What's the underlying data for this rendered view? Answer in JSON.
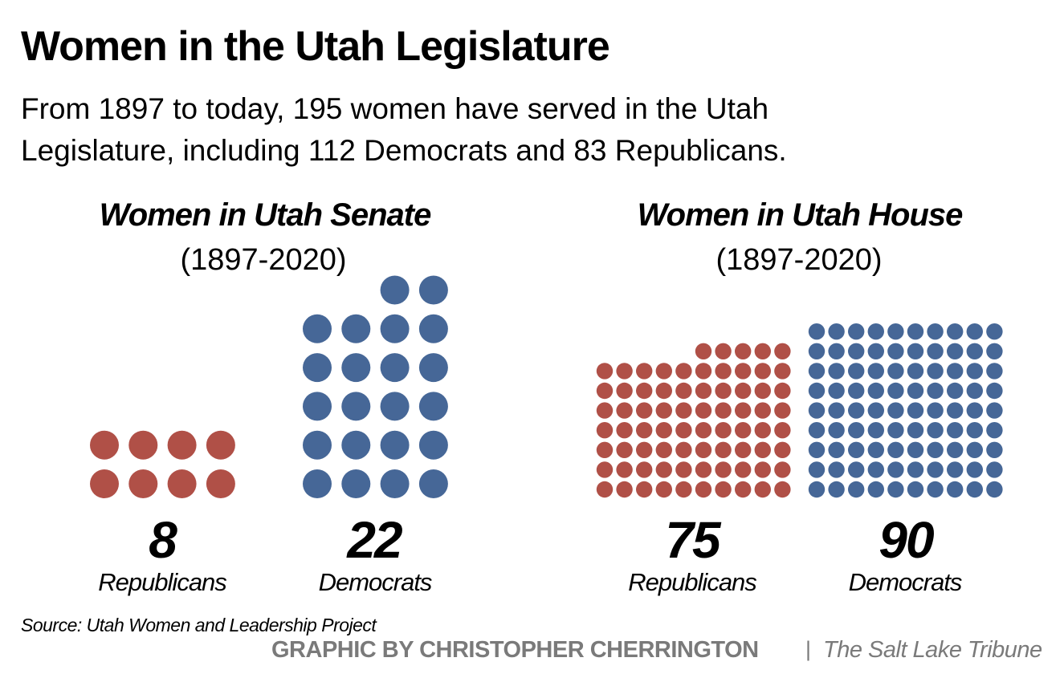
{
  "title": "Women in the Utah Legislature",
  "subtitle": [
    "From 1897 to today, 195 women have served in the Utah",
    "Legislature, including 112 Democrats and 83 Republicans."
  ],
  "source": "Source: Utah Women and Leadership Project",
  "credit": "GRAPHIC BY CHRISTOPHER CHERRINGTON",
  "separator": "|",
  "publisher": "The Salt Lake Tribune",
  "colors": {
    "republican": "#b05047",
    "democrat": "#466797"
  },
  "chart_data": [
    {
      "type": "waffle",
      "title": "Women in Utah Senate",
      "subtitle": "(1897-2020)",
      "categories": [
        "Republicans",
        "Democrats"
      ],
      "values": [
        8,
        22
      ],
      "value_labels": [
        "8",
        "22"
      ],
      "dots_per_row": 4,
      "colors": [
        "#b05047",
        "#466797"
      ]
    },
    {
      "type": "waffle",
      "title": "Women in Utah House",
      "subtitle": "(1897-2020)",
      "categories": [
        "Republicans",
        "Democrats"
      ],
      "values": [
        75,
        90
      ],
      "value_labels": [
        "75",
        "90"
      ],
      "dots_per_row": 10,
      "colors": [
        "#b05047",
        "#466797"
      ]
    }
  ]
}
